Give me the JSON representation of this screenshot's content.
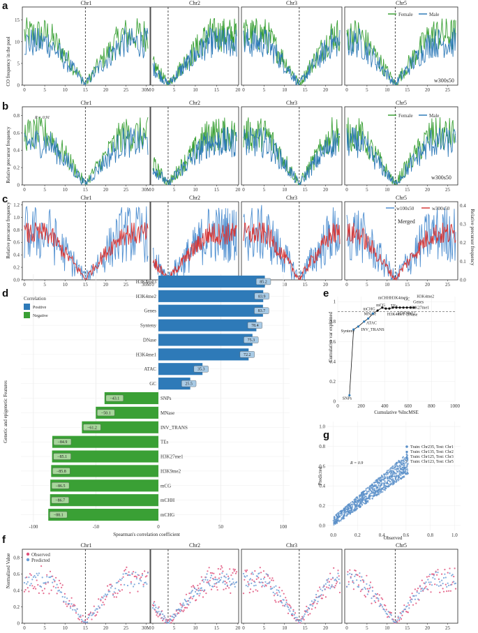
{
  "colors": {
    "female": "#3aa035",
    "male": "#2e7ab8",
    "w100": "#4f8fd0",
    "w300": "#d63a3a",
    "positive": "#2e7ab8",
    "negative": "#3aa035",
    "observed": "#e0507a",
    "predicted": "#6b9ed6",
    "label_fill": "#a9cbe6",
    "neg_label_fill": "#a7d69b"
  },
  "chromosomes": [
    "Chr1",
    "Chr2",
    "Chr3",
    "Chr5"
  ],
  "panels": {
    "a": {
      "label": "a",
      "ylabel": "CO frequency in the pool",
      "legend": [
        "Female",
        "Male"
      ],
      "note": "w300s50",
      "yticks": [
        "0",
        "5",
        "10",
        "15"
      ],
      "ymax": 18
    },
    "b": {
      "label": "b",
      "ylabel": "Relative precursor frequency",
      "legend": [
        "Female",
        "Male"
      ],
      "note": "w300s50",
      "r_label": "R = 0.91",
      "yticks": [
        "0",
        "0.2",
        "0.4",
        "0.6",
        "0.8"
      ],
      "ymax": 0.9
    },
    "c": {
      "label": "c",
      "ylabel": "Relative precursor frequency",
      "ylabel_right": "Relative precursor frequency",
      "legend": [
        "w100s50",
        "w300s50"
      ],
      "note": "Merged",
      "yticks": [
        "0.0",
        "0.2",
        "0.4",
        "0.6",
        "0.8",
        "1.0",
        "1.2"
      ],
      "yticks_right": [
        "0.0",
        "0.1",
        "0.2",
        "0.3",
        "0.4"
      ],
      "ymax": 1.25
    },
    "f": {
      "label": "f",
      "ylabel": "Normalized Value",
      "legend": [
        "Observed",
        "Predicted"
      ],
      "yticks": [
        "0",
        "0.2",
        "0.4",
        "0.6",
        "0.8"
      ],
      "ymax": 0.9
    }
  },
  "xticks": {
    "Chr1": [
      "0",
      "5",
      "10",
      "15",
      "20",
      "25",
      "30M"
    ],
    "Chr2": [
      "0",
      "5",
      "10",
      "15",
      "20"
    ],
    "Chr3": [
      "0",
      "5",
      "10",
      "15",
      "20"
    ],
    "Chr5": [
      "0",
      "5",
      "10",
      "15",
      "20",
      "25"
    ]
  },
  "centromeres": {
    "Chr1": 15,
    "Chr2": 3.6,
    "Chr3": 13.6,
    "Chr5": 12
  },
  "chrom_lengths": {
    "Chr1": 30.4,
    "Chr2": 19.7,
    "Chr3": 23.5,
    "Chr5": 27
  },
  "chart_data": [
    {
      "panel": "d",
      "type": "bar",
      "title": "",
      "xlabel": "Spearman's correlation coefficient",
      "ylabel": "Genetic and epigenetic Features",
      "legend_title": "Correlation",
      "legend": [
        "Positive",
        "Negative"
      ],
      "xlim": [
        -110,
        105
      ],
      "xticks": [
        "-100",
        "-50",
        "0",
        "50",
        "100"
      ],
      "categories": [
        "H3K4me3",
        "H3K4me2",
        "Genes",
        "Synteny",
        "DNase",
        "H3K4me1",
        "ATAC",
        "GC",
        "SNPs",
        "MNase",
        "INV_TRANS",
        "TEs",
        "H3K27me1",
        "H3K9me2",
        "mCG",
        "mCHH",
        "mCHG"
      ],
      "values": [
        85.2,
        83.9,
        83.7,
        78.4,
        75.3,
        72.2,
        35.3,
        25.5,
        -43.1,
        -50.1,
        -61.2,
        -84.9,
        -85.1,
        -85.8,
        -86.5,
        -86.7,
        -88.1
      ],
      "value_labels": [
        "85.2",
        "83.9",
        "83.7",
        "78.4",
        "75.3",
        "72.2",
        "35.3",
        "25.5",
        "−43.1",
        "−50.1",
        "−61.2",
        "−84.9",
        "−85.1",
        "−85.8",
        "−86.5",
        "−86.7",
        "−88.1"
      ]
    },
    {
      "panel": "e",
      "type": "line",
      "xlabel": "Cumulative %IncMSE",
      "ylabel": "Cumulative var explained",
      "xlim": [
        0,
        1000
      ],
      "ylim": [
        0,
        1.05
      ],
      "xticks": [
        "0",
        "200",
        "400",
        "600",
        "800",
        "1000"
      ],
      "yticks": [
        "0",
        "0.2",
        "0.4",
        "0.6",
        "0.8",
        "1"
      ],
      "threshold": 0.9,
      "points": [
        {
          "name": "SNPs",
          "x": 100,
          "y": 0.06,
          "color": "blue"
        },
        {
          "name": "Synteny",
          "x": 135,
          "y": 0.72,
          "color": "blue"
        },
        {
          "name": "INV_TRANS",
          "x": 175,
          "y": 0.75,
          "color": "blue"
        },
        {
          "name": "ATAC",
          "x": 225,
          "y": 0.8,
          "color": "blue"
        },
        {
          "name": "MNase",
          "x": 260,
          "y": 0.83,
          "color": "blue"
        },
        {
          "name": "mCHG",
          "x": 300,
          "y": 0.88,
          "color": "blue"
        },
        {
          "name": "mCG",
          "x": 340,
          "y": 0.91,
          "color": "black"
        },
        {
          "name": "mCHH",
          "x": 380,
          "y": 0.94,
          "color": "black"
        },
        {
          "name": "H3K4me1",
          "x": 410,
          "y": 0.93,
          "color": "black"
        },
        {
          "name": "TEs",
          "x": 440,
          "y": 0.93,
          "color": "black"
        },
        {
          "name": "H3K4me3",
          "x": 470,
          "y": 0.94,
          "color": "black"
        },
        {
          "name": "H3K9me2",
          "x": 500,
          "y": 0.94,
          "color": "black"
        },
        {
          "name": "GC",
          "x": 530,
          "y": 0.94,
          "color": "black"
        },
        {
          "name": "DNase",
          "x": 560,
          "y": 0.94,
          "color": "black"
        },
        {
          "name": "H3K27me1",
          "x": 590,
          "y": 0.94,
          "color": "black"
        },
        {
          "name": "Genes",
          "x": 620,
          "y": 0.94,
          "color": "black"
        },
        {
          "name": "H3K4me2",
          "x": 650,
          "y": 0.94,
          "color": "black"
        }
      ]
    },
    {
      "panel": "g",
      "type": "scatter",
      "xlabel": "Observed",
      "ylabel": "Predicted",
      "xlim": [
        -0.05,
        1.05
      ],
      "ylim": [
        -0.05,
        1.05
      ],
      "xticks": [
        "0.0",
        "0.2",
        "0.4",
        "0.6",
        "0.8",
        "1.0"
      ],
      "yticks": [
        "0.0",
        "0.2",
        "0.4",
        "0.6",
        "0.8",
        "1.0"
      ],
      "r_label": "R = 0.9",
      "series": [
        "Train: Chr235, Test: Chr1",
        "Train: Chr135, Test: Chr2",
        "Train: Chr125, Test: Chr3",
        "Train: Chr123, Test: Chr5"
      ]
    }
  ]
}
